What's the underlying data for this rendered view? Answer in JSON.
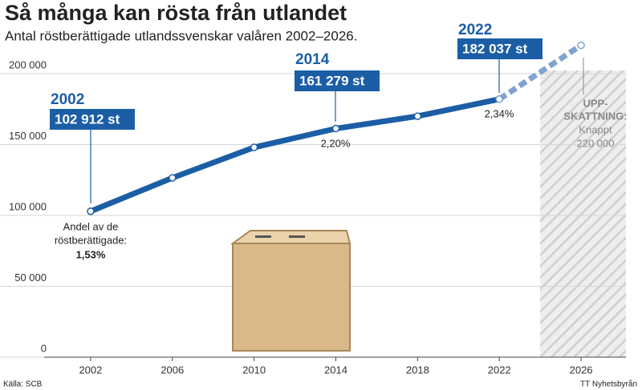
{
  "chart_data": {
    "type": "line",
    "title": "Så många kan rösta från utlandet",
    "subtitle": "Antal röstberättigade utlandssvenskar valåren 2002–2026.",
    "x": [
      2002,
      2006,
      2010,
      2014,
      2018,
      2022,
      2026
    ],
    "series": [
      {
        "color": "#1b5ea6",
        "dashed": false,
        "values": [
          102912,
          126500,
          148000,
          161279,
          170000,
          182037,
          null
        ]
      },
      {
        "color": "#7fa3cf",
        "dashed": true,
        "values": [
          null,
          null,
          null,
          null,
          null,
          182037,
          220000
        ]
      }
    ],
    "xlim": [
      2000,
      2028
    ],
    "xticks": [
      2002,
      2006,
      2010,
      2014,
      2018,
      2022,
      2026
    ],
    "ylim": [
      0,
      200000
    ],
    "yticks": [
      0,
      {
        "value": 50000,
        "label": "50 000"
      },
      {
        "value": 100000,
        "label": "100 000"
      },
      {
        "value": 150000,
        "label": "150 000"
      },
      {
        "value": 200000,
        "label": "200 000"
      }
    ],
    "grid": true,
    "callouts": [
      {
        "year": "2002",
        "value": "102 912 st"
      },
      {
        "year": "2014",
        "value": "161 279 st"
      },
      {
        "year": "2022",
        "value": "182 037 st"
      }
    ],
    "share_note": [
      "Andel av de",
      "röstberättigade:"
    ],
    "shares": [
      "1,53%",
      "2,20%",
      "2,34%"
    ],
    "forecast_note": [
      "UPP-",
      "SKATTNING:",
      "Knappt",
      "220 000"
    ],
    "source": "Källa: SCB",
    "credit": "TT Nyhetsbyrån"
  }
}
